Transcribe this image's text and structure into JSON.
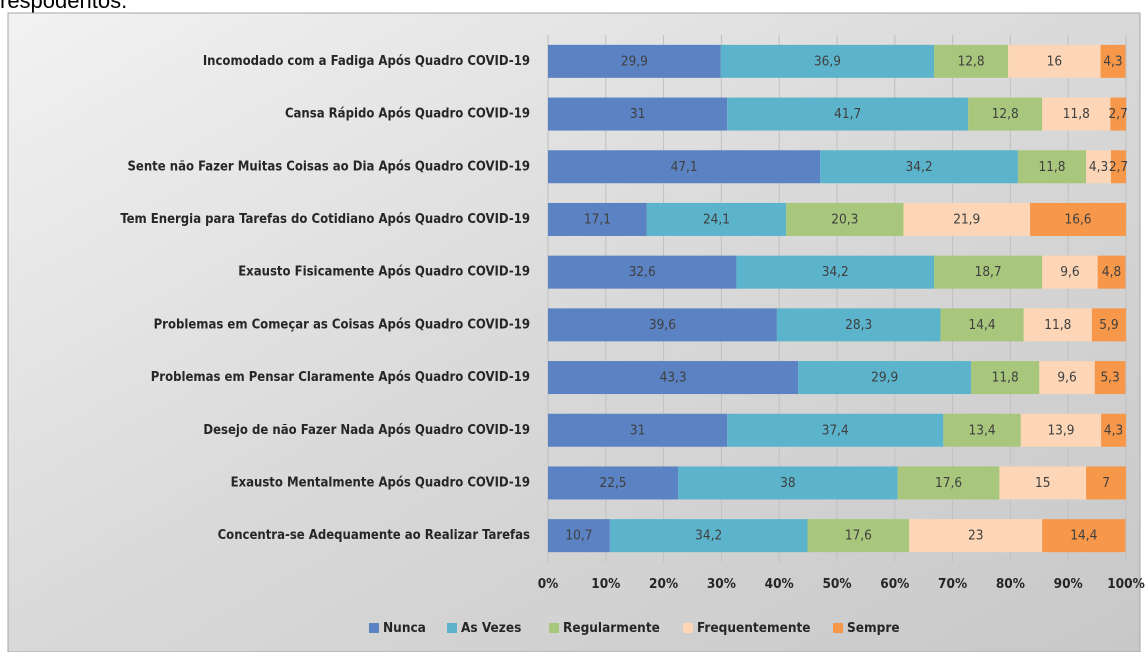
{
  "caption": "respodentos.",
  "chart_data": {
    "type": "stacked_bar_horizontal",
    "categories": [
      "Incomodado com a Fadiga Após Quadro COVID-19",
      "Cansa Rápido Após Quadro COVID-19",
      "Sente não Fazer Muitas Coisas ao Dia Após Quadro COVID-19",
      "Tem Energia para Tarefas do Cotidiano Após Quadro COVID-19",
      "Exausto Fisicamente Após Quadro COVID-19",
      "Problemas em Começar as Coisas Após Quadro COVID-19",
      "Problemas em Pensar Claramente Após Quadro COVID-19",
      "Desejo de não Fazer Nada Após Quadro COVID-19",
      "Exausto Mentalmente Após Quadro COVID-19",
      "Concentra-se Adequamente ao Realizar Tarefas"
    ],
    "series": [
      {
        "name": "Nunca",
        "color": "#5b82c2",
        "values": [
          29.9,
          31,
          47.1,
          17.1,
          32.6,
          39.6,
          43.3,
          31,
          22.5,
          10.7
        ],
        "value_labels": [
          "29,9",
          "31",
          "47,1",
          "17,1",
          "32,6",
          "39,6",
          "43,3",
          "31",
          "22,5",
          "10,7"
        ]
      },
      {
        "name": "As Vezes",
        "color": "#5bb4cc",
        "values": [
          36.9,
          41.7,
          34.2,
          24.1,
          34.2,
          28.3,
          29.9,
          37.4,
          38,
          34.2
        ],
        "value_labels": [
          "36,9",
          "41,7",
          "34,2",
          "24,1",
          "34,2",
          "28,3",
          "29,9",
          "37,4",
          "38",
          "34,2"
        ]
      },
      {
        "name": "Regularmente",
        "color": "#a8c77c",
        "values": [
          12.8,
          12.8,
          11.8,
          20.3,
          18.7,
          14.4,
          11.8,
          13.4,
          17.6,
          17.6
        ],
        "value_labels": [
          "12,8",
          "12,8",
          "11,8",
          "20,3",
          "18,7",
          "14,4",
          "11,8",
          "13,4",
          "17,6",
          "17,6"
        ]
      },
      {
        "name": "Frequentemente",
        "color": "#fcd6b6",
        "values": [
          16,
          11.8,
          4.3,
          21.9,
          9.6,
          11.8,
          9.6,
          13.9,
          15,
          23
        ],
        "value_labels": [
          "16",
          "11,8",
          "4,3",
          "21,9",
          "9,6",
          "11,8",
          "9,6",
          "13,9",
          "15",
          "23"
        ]
      },
      {
        "name": "Sempre",
        "color": "#f6974a",
        "values": [
          4.3,
          2.7,
          2.7,
          16.6,
          4.8,
          5.9,
          5.3,
          4.3,
          7,
          14.4
        ],
        "value_labels": [
          "4,3",
          "2,7",
          "2,7",
          "16,6",
          "4,8",
          "5,9",
          "5,3",
          "4,3",
          "7",
          "14,4"
        ]
      }
    ],
    "xlim": [
      0,
      100
    ],
    "xticks": [
      {
        "value": 0,
        "label": "0%"
      },
      {
        "value": 10,
        "label": "10%"
      },
      {
        "value": 20,
        "label": "20%"
      },
      {
        "value": 30,
        "label": "30%"
      },
      {
        "value": 40,
        "label": "40%"
      },
      {
        "value": 50,
        "label": "50%"
      },
      {
        "value": 60,
        "label": "60%"
      },
      {
        "value": 70,
        "label": "70%"
      },
      {
        "value": 80,
        "label": "80%"
      },
      {
        "value": 90,
        "label": "90%"
      },
      {
        "value": 100,
        "label": "100%"
      }
    ],
    "grid": true,
    "legend": "bottom"
  }
}
